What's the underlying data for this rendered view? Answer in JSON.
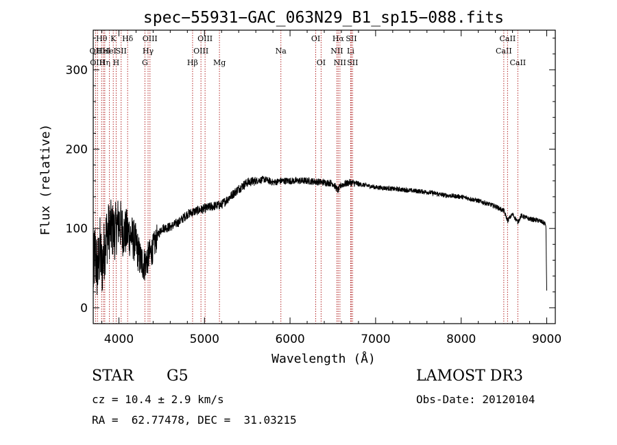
{
  "chart_data": {
    "type": "line",
    "title": "spec−55931−GAC_063N29_B1_sp15−088.fits",
    "xlabel": "Wavelength (Å)",
    "ylabel": "Flux (relative)",
    "xlim": [
      3700,
      9100
    ],
    "ylim": [
      -20,
      350
    ],
    "xticks": [
      4000,
      5000,
      6000,
      7000,
      8000,
      9000
    ],
    "yticks": [
      0,
      100,
      200,
      300
    ],
    "line_color": "#000000",
    "marker_color": "#b22222",
    "series": [
      {
        "name": "flux",
        "anchors": [
          [
            3700,
            40
          ],
          [
            3720,
            70
          ],
          [
            3750,
            45
          ],
          [
            3780,
            75
          ],
          [
            3800,
            50
          ],
          [
            3850,
            90
          ],
          [
            3900,
            100
          ],
          [
            3950,
            95
          ],
          [
            4000,
            110
          ],
          [
            4050,
            95
          ],
          [
            4100,
            95
          ],
          [
            4150,
            90
          ],
          [
            4200,
            80
          ],
          [
            4250,
            60
          ],
          [
            4300,
            55
          ],
          [
            4350,
            65
          ],
          [
            4400,
            75
          ],
          [
            4450,
            90
          ],
          [
            4500,
            100
          ],
          [
            4600,
            102
          ],
          [
            4700,
            108
          ],
          [
            4800,
            118
          ],
          [
            4900,
            122
          ],
          [
            5000,
            125
          ],
          [
            5100,
            128
          ],
          [
            5200,
            130
          ],
          [
            5300,
            140
          ],
          [
            5400,
            150
          ],
          [
            5500,
            158
          ],
          [
            5600,
            160
          ],
          [
            5700,
            162
          ],
          [
            5800,
            158
          ],
          [
            5900,
            160
          ],
          [
            6000,
            160
          ],
          [
            6100,
            160
          ],
          [
            6200,
            160
          ],
          [
            6300,
            159
          ],
          [
            6400,
            158
          ],
          [
            6500,
            157
          ],
          [
            6560,
            148
          ],
          [
            6600,
            155
          ],
          [
            6700,
            158
          ],
          [
            6800,
            156
          ],
          [
            6900,
            154
          ],
          [
            7000,
            152
          ],
          [
            7200,
            150
          ],
          [
            7400,
            148
          ],
          [
            7600,
            146
          ],
          [
            7800,
            142
          ],
          [
            8000,
            140
          ],
          [
            8200,
            135
          ],
          [
            8400,
            128
          ],
          [
            8500,
            122
          ],
          [
            8542,
            110
          ],
          [
            8600,
            118
          ],
          [
            8662,
            108
          ],
          [
            8700,
            116
          ],
          [
            8800,
            112
          ],
          [
            8900,
            110
          ],
          [
            8950,
            108
          ],
          [
            8990,
            105
          ],
          [
            9000,
            20
          ]
        ]
      }
    ],
    "line_markers": [
      {
        "wavelength": 3727,
        "label": "OII",
        "row": 2
      },
      {
        "wavelength": 3750,
        "label": "OIII",
        "row": 3
      },
      {
        "wavelength": 3798,
        "label": "Hθ",
        "row": 1
      },
      {
        "wavelength": 3820,
        "label": "HeI",
        "row": 2
      },
      {
        "wavelength": 3835,
        "label": "Hη",
        "row": 3
      },
      {
        "wavelength": 3889,
        "label": "HeI",
        "row": 2
      },
      {
        "wavelength": 3934,
        "label": "K",
        "row": 1
      },
      {
        "wavelength": 3968,
        "label": "H",
        "row": 3
      },
      {
        "wavelength": 4026,
        "label": "SII",
        "row": 2
      },
      {
        "wavelength": 4102,
        "label": "Hδ",
        "row": 1
      },
      {
        "wavelength": 4304,
        "label": "G",
        "row": 3
      },
      {
        "wavelength": 4341,
        "label": "Hγ",
        "row": 2
      },
      {
        "wavelength": 4363,
        "label": "OIII",
        "row": 1
      },
      {
        "wavelength": 4861,
        "label": "Hβ",
        "row": 3
      },
      {
        "wavelength": 4959,
        "label": "OIII",
        "row": 2
      },
      {
        "wavelength": 5007,
        "label": "OIII",
        "row": 1
      },
      {
        "wavelength": 5175,
        "label": "Mg",
        "row": 3
      },
      {
        "wavelength": 5893,
        "label": "Na",
        "row": 2
      },
      {
        "wavelength": 6300,
        "label": "OI",
        "row": 1
      },
      {
        "wavelength": 6363,
        "label": "OI",
        "row": 3
      },
      {
        "wavelength": 6548,
        "label": "NII",
        "row": 2
      },
      {
        "wavelength": 6563,
        "label": "Hα",
        "row": 1
      },
      {
        "wavelength": 6583,
        "label": "NII",
        "row": 3
      },
      {
        "wavelength": 6708,
        "label": "Li",
        "row": 2
      },
      {
        "wavelength": 6716,
        "label": "SII",
        "row": 1
      },
      {
        "wavelength": 6731,
        "label": "SII",
        "row": 3
      },
      {
        "wavelength": 8498,
        "label": "CaII",
        "row": 2
      },
      {
        "wavelength": 8542,
        "label": "CaII",
        "row": 1
      },
      {
        "wavelength": 8662,
        "label": "CaII",
        "row": 3
      }
    ]
  },
  "info": {
    "object_type": "STAR",
    "subclass": "G5",
    "survey": "LAMOST DR3",
    "redshift_line": "cz = 10.4 ± 2.9 km/s",
    "obs_date": "Obs-Date: 20120104",
    "coords": "RA =  62.77478, DEC =  31.03215"
  }
}
